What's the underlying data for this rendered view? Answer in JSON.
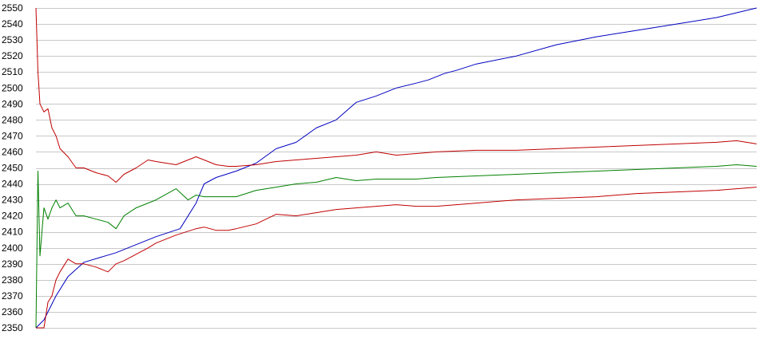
{
  "chart_data": {
    "type": "line",
    "title": "",
    "xlabel": "",
    "ylabel": "",
    "grid": true,
    "legend": "none",
    "xlim": [
      0,
      180
    ],
    "ylim": [
      2350,
      2550
    ],
    "yticks": [
      2350,
      2360,
      2370,
      2380,
      2390,
      2400,
      2410,
      2420,
      2430,
      2440,
      2450,
      2460,
      2470,
      2480,
      2490,
      2500,
      2510,
      2520,
      2530,
      2540,
      2550
    ],
    "series": [
      {
        "color": "#0000c0",
        "x": [
          0,
          2,
          5,
          8,
          12,
          20,
          25,
          30,
          36,
          40,
          42,
          45,
          50,
          55,
          60,
          65,
          70,
          75,
          80,
          85,
          90,
          95,
          98,
          100,
          102,
          105,
          110,
          120,
          130,
          140,
          150,
          160,
          170,
          180
        ],
        "values": [
          2350,
          2355,
          2370,
          2382,
          2391,
          2397,
          2402,
          2407,
          2412,
          2428,
          2440,
          2444,
          2448,
          2453,
          2462,
          2466,
          2475,
          2480,
          2491,
          2495,
          2500,
          2503,
          2505,
          2507,
          2509,
          2511,
          2515,
          2520,
          2527,
          2532,
          2536,
          2540,
          2544,
          2550
        ]
      },
      {
        "color": "#c00000",
        "x": [
          0,
          0.5,
          1,
          2,
          3,
          4,
          5,
          6,
          8,
          10,
          12,
          15,
          18,
          20,
          22,
          25,
          28,
          30,
          35,
          40,
          42,
          45,
          48,
          50,
          55,
          60,
          65,
          70,
          75,
          80,
          85,
          90,
          95,
          100,
          110,
          120,
          130,
          140,
          150,
          160,
          170,
          175,
          180
        ],
        "values": [
          2550,
          2510,
          2490,
          2485,
          2487,
          2475,
          2470,
          2462,
          2457,
          2450,
          2450,
          2447,
          2445,
          2441,
          2446,
          2450,
          2455,
          2454,
          2452,
          2457,
          2455,
          2452,
          2451,
          2451,
          2452,
          2454,
          2455,
          2456,
          2457,
          2458,
          2460,
          2458,
          2459,
          2460,
          2461,
          2461,
          2462,
          2463,
          2464,
          2465,
          2466,
          2467,
          2465
        ]
      },
      {
        "color": "#008000",
        "x": [
          0,
          0.5,
          1,
          1.5,
          2,
          3,
          4,
          5,
          6,
          8,
          10,
          12,
          15,
          18,
          20,
          22,
          25,
          28,
          30,
          35,
          38,
          40,
          42,
          45,
          48,
          50,
          55,
          60,
          65,
          70,
          75,
          80,
          85,
          90,
          95,
          100,
          110,
          120,
          130,
          140,
          150,
          160,
          170,
          175,
          180
        ],
        "values": [
          2350,
          2448,
          2395,
          2410,
          2425,
          2418,
          2425,
          2430,
          2425,
          2428,
          2420,
          2420,
          2418,
          2416,
          2412,
          2420,
          2425,
          2428,
          2430,
          2437,
          2430,
          2433,
          2432,
          2432,
          2432,
          2432,
          2436,
          2438,
          2440,
          2441,
          2444,
          2442,
          2443,
          2443,
          2443,
          2444,
          2445,
          2446,
          2447,
          2448,
          2449,
          2450,
          2451,
          2452,
          2451
        ]
      },
      {
        "color": "#c00000",
        "x": [
          0,
          2,
          3,
          4,
          5,
          6,
          8,
          10,
          12,
          15,
          18,
          20,
          22,
          25,
          28,
          30,
          35,
          40,
          42,
          45,
          48,
          50,
          55,
          60,
          65,
          70,
          75,
          80,
          85,
          90,
          95,
          100,
          110,
          120,
          130,
          140,
          150,
          160,
          170,
          175,
          180
        ],
        "values": [
          2350,
          2350,
          2366,
          2370,
          2380,
          2385,
          2393,
          2390,
          2390,
          2388,
          2385,
          2390,
          2392,
          2396,
          2400,
          2403,
          2408,
          2412,
          2413,
          2411,
          2411,
          2412,
          2415,
          2421,
          2420,
          2422,
          2424,
          2425,
          2426,
          2427,
          2426,
          2426,
          2428,
          2430,
          2431,
          2432,
          2434,
          2435,
          2436,
          2437,
          2438
        ]
      }
    ]
  }
}
